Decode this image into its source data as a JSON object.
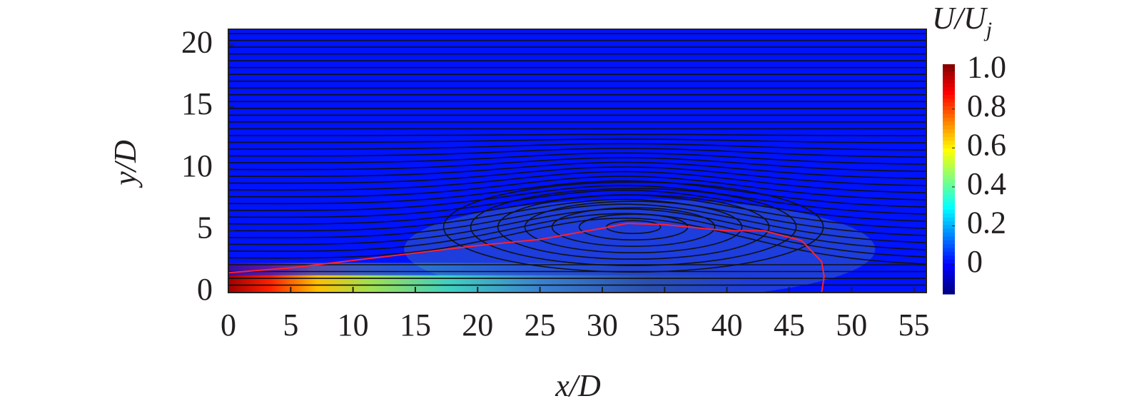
{
  "chart_data": {
    "type": "contour",
    "xlabel": "x/D",
    "ylabel": "y/D",
    "colorbar_label": {
      "main": "U/U",
      "sub": "j"
    },
    "xlim": [
      0,
      56
    ],
    "xticks": [
      0,
      5,
      10,
      15,
      20,
      25,
      30,
      35,
      40,
      45,
      50,
      55
    ],
    "ylim": [
      0,
      21.3
    ],
    "yticks": [
      0,
      5,
      10,
      15,
      20
    ],
    "clim": [
      -0.15,
      1.03
    ],
    "cticks": [
      0,
      0.2,
      0.4,
      0.6,
      0.8,
      {
        "value": 1,
        "label": "1.0"
      }
    ],
    "colormap": "jet"
  }
}
